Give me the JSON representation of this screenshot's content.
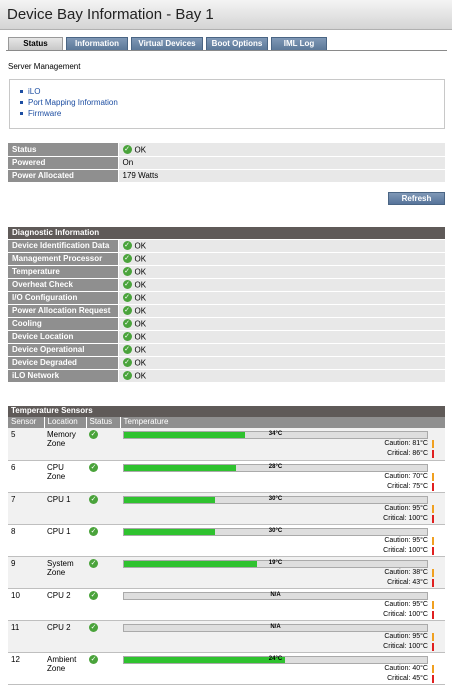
{
  "title": "Device Bay Information - Bay 1",
  "tabs": [
    {
      "label": "Status",
      "active": true
    },
    {
      "label": "Information",
      "active": false
    },
    {
      "label": "Virtual Devices",
      "active": false
    },
    {
      "label": "Boot Options",
      "active": false
    },
    {
      "label": "IML Log",
      "active": false
    }
  ],
  "server_management": {
    "label": "Server Management",
    "links": [
      "iLO",
      "Port Mapping Information",
      "Firmware"
    ]
  },
  "status_table": [
    {
      "label": "Status",
      "value": "OK",
      "ok": true
    },
    {
      "label": "Powered",
      "value": "On",
      "ok": false
    },
    {
      "label": "Power Allocated",
      "value": "179 Watts",
      "ok": false
    }
  ],
  "refresh_label": "Refresh",
  "diagnostic": {
    "title": "Diagnostic Information",
    "items": [
      {
        "label": "Device Identification Data",
        "value": "OK"
      },
      {
        "label": "Management Processor",
        "value": "OK"
      },
      {
        "label": "Temperature",
        "value": "OK"
      },
      {
        "label": "Overheat Check",
        "value": "OK"
      },
      {
        "label": "I/O Configuration",
        "value": "OK"
      },
      {
        "label": "Power Allocation Request",
        "value": "OK"
      },
      {
        "label": "Cooling",
        "value": "OK"
      },
      {
        "label": "Device Location",
        "value": "OK"
      },
      {
        "label": "Device Operational",
        "value": "OK"
      },
      {
        "label": "Device Degraded",
        "value": "OK"
      },
      {
        "label": "iLO Network",
        "value": "OK"
      }
    ]
  },
  "temperature": {
    "title": "Temperature Sensors",
    "columns": [
      "Sensor",
      "Location",
      "Status",
      "Temperature"
    ],
    "colors": {
      "fill": "#2fc22f",
      "caution": "#f0a020",
      "critical": "#e02020",
      "ok": "#4aa33b"
    },
    "sensors": [
      {
        "sensor": "5",
        "location": "Memory Zone",
        "reading": "34°C",
        "fraction": 0.4,
        "caution": "Caution: 81°C",
        "critical": "Critical: 86°C"
      },
      {
        "sensor": "6",
        "location": "CPU Zone",
        "reading": "28°C",
        "fraction": 0.37,
        "caution": "Caution: 70°C",
        "critical": "Critical: 75°C"
      },
      {
        "sensor": "7",
        "location": "CPU 1",
        "reading": "30°C",
        "fraction": 0.3,
        "caution": "Caution: 95°C",
        "critical": "Critical: 100°C"
      },
      {
        "sensor": "8",
        "location": "CPU 1",
        "reading": "30°C",
        "fraction": 0.3,
        "caution": "Caution: 95°C",
        "critical": "Critical: 100°C"
      },
      {
        "sensor": "9",
        "location": "System Zone",
        "reading": "19°C",
        "fraction": 0.44,
        "caution": "Caution: 38°C",
        "critical": "Critical: 43°C"
      },
      {
        "sensor": "10",
        "location": "CPU 2",
        "reading": "N/A",
        "fraction": 0,
        "caution": "Caution: 95°C",
        "critical": "Critical: 100°C"
      },
      {
        "sensor": "11",
        "location": "CPU 2",
        "reading": "N/A",
        "fraction": 0,
        "caution": "Caution: 95°C",
        "critical": "Critical: 100°C"
      },
      {
        "sensor": "12",
        "location": "Ambient Zone",
        "reading": "24°C",
        "fraction": 0.53,
        "caution": "Caution: 40°C",
        "critical": "Critical: 45°C"
      }
    ]
  }
}
